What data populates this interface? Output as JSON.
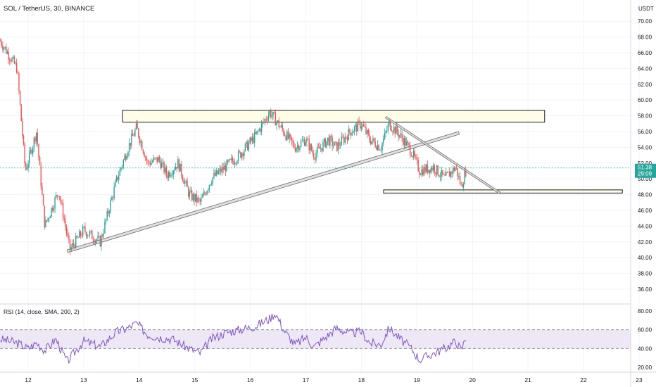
{
  "header": {
    "symbol_line": "SOL / TetherUS, 30, BINANCE",
    "currency_label": "USDT"
  },
  "price_badge": {
    "price": "51.38",
    "countdown": "29:09"
  },
  "rsi_panel": {
    "label": "RSI (14, close, SMA, 200, 2)"
  },
  "colors": {
    "up": "#26a69a",
    "down": "#ef5350",
    "rsi_line": "#7e57c2",
    "rsi_band": "#ede7f6",
    "zone_fill": "#fffde7",
    "channel_fill": "#e0e0e0",
    "price_badge": "#26a69a",
    "grid": "#f0f3fa"
  },
  "chart_data": [
    {
      "type": "candlestick",
      "title": "SOL / TetherUS, 30, BINANCE",
      "x_axis": {
        "tick_labels": [
          "12",
          "13",
          "14",
          "15",
          "16",
          "17",
          "18",
          "19",
          "20",
          "21",
          "22",
          "23"
        ],
        "x_values": [
          12,
          13,
          14,
          15,
          16,
          17,
          18,
          19,
          20,
          21,
          22,
          23
        ]
      },
      "y_axis": {
        "unit": "USDT",
        "tick_labels": [
          "36.00",
          "38.00",
          "40.00",
          "42.00",
          "44.00",
          "46.00",
          "48.00",
          "50.00",
          "52.00",
          "54.00",
          "56.00",
          "58.00",
          "60.00",
          "62.00",
          "64.00",
          "66.00",
          "68.00",
          "70.00"
        ],
        "ylim": [
          35,
          71
        ]
      },
      "close_path": [
        [
          11.5,
          67.5
        ],
        [
          11.8,
          64.0
        ],
        [
          11.95,
          51.0
        ],
        [
          12.15,
          56.0
        ],
        [
          12.3,
          44.0
        ],
        [
          12.55,
          48.5
        ],
        [
          12.75,
          41.0
        ],
        [
          13.0,
          43.5
        ],
        [
          13.3,
          42.0
        ],
        [
          13.6,
          50.0
        ],
        [
          13.8,
          54.0
        ],
        [
          13.95,
          56.5
        ],
        [
          14.15,
          52.0
        ],
        [
          14.35,
          52.5
        ],
        [
          14.5,
          50.5
        ],
        [
          14.7,
          52.0
        ],
        [
          14.9,
          48.0
        ],
        [
          15.1,
          47.0
        ],
        [
          15.3,
          50.0
        ],
        [
          15.55,
          51.5
        ],
        [
          15.8,
          53.0
        ],
        [
          16.1,
          55.5
        ],
        [
          16.35,
          58.5
        ],
        [
          16.6,
          56.0
        ],
        [
          16.8,
          54.0
        ],
        [
          17.0,
          55.0
        ],
        [
          17.15,
          53.0
        ],
        [
          17.4,
          55.0
        ],
        [
          17.55,
          54.0
        ],
        [
          17.8,
          56.0
        ],
        [
          18.0,
          57.0
        ],
        [
          18.15,
          55.0
        ],
        [
          18.35,
          54.0
        ],
        [
          18.5,
          57.0
        ],
        [
          18.7,
          55.5
        ],
        [
          18.9,
          53.5
        ],
        [
          19.05,
          51.0
        ],
        [
          19.3,
          51.5
        ],
        [
          19.5,
          50.0
        ],
        [
          19.7,
          51.5
        ],
        [
          19.8,
          49.0
        ],
        [
          19.9,
          51.5
        ]
      ],
      "annotations": [
        {
          "kind": "resistance_zone",
          "from_x": 13.7,
          "to_x": 21.3,
          "low": 57.2,
          "high": 58.7
        },
        {
          "kind": "support_zone",
          "from_x": 18.4,
          "to_x": 22.7,
          "low": 48.2,
          "high": 48.6
        },
        {
          "kind": "rising_trendline",
          "from": [
            12.7,
            41.0
          ],
          "to": [
            19.75,
            56.0
          ]
        },
        {
          "kind": "falling_trendline",
          "from": [
            18.45,
            57.9
          ],
          "to": [
            20.5,
            48.3
          ]
        }
      ],
      "last_price": 51.38
    },
    {
      "type": "line",
      "title": "RSI (14, close, SMA, 200, 2)",
      "series": [
        {
          "values_path": [
            [
              11.5,
              50
            ],
            [
              11.8,
              46
            ],
            [
              12.0,
              40
            ],
            [
              12.15,
              46
            ],
            [
              12.3,
              38
            ],
            [
              12.5,
              50
            ],
            [
              12.7,
              26
            ],
            [
              13.0,
              48
            ],
            [
              13.3,
              42
            ],
            [
              13.6,
              58
            ],
            [
              13.8,
              62
            ],
            [
              13.95,
              67
            ],
            [
              14.15,
              55
            ],
            [
              14.35,
              52
            ],
            [
              14.6,
              50
            ],
            [
              14.9,
              40
            ],
            [
              15.1,
              35
            ],
            [
              15.3,
              50
            ],
            [
              15.55,
              57
            ],
            [
              15.8,
              60
            ],
            [
              16.1,
              64
            ],
            [
              16.35,
              72
            ],
            [
              16.45,
              78
            ],
            [
              16.6,
              60
            ],
            [
              16.8,
              44
            ],
            [
              17.0,
              52
            ],
            [
              17.15,
              42
            ],
            [
              17.4,
              54
            ],
            [
              17.55,
              62
            ],
            [
              17.8,
              56
            ],
            [
              18.0,
              58
            ],
            [
              18.15,
              46
            ],
            [
              18.35,
              44
            ],
            [
              18.5,
              62
            ],
            [
              18.7,
              50
            ],
            [
              18.9,
              40
            ],
            [
              19.05,
              28
            ],
            [
              19.3,
              35
            ],
            [
              19.5,
              40
            ],
            [
              19.7,
              48
            ],
            [
              19.8,
              38
            ],
            [
              19.9,
              56
            ]
          ]
        }
      ],
      "y_axis": {
        "tick_labels": [
          "20.00",
          "40.00",
          "60.00",
          "80.00"
        ],
        "ylim": [
          15,
          85
        ]
      },
      "band": [
        40,
        60
      ]
    }
  ]
}
